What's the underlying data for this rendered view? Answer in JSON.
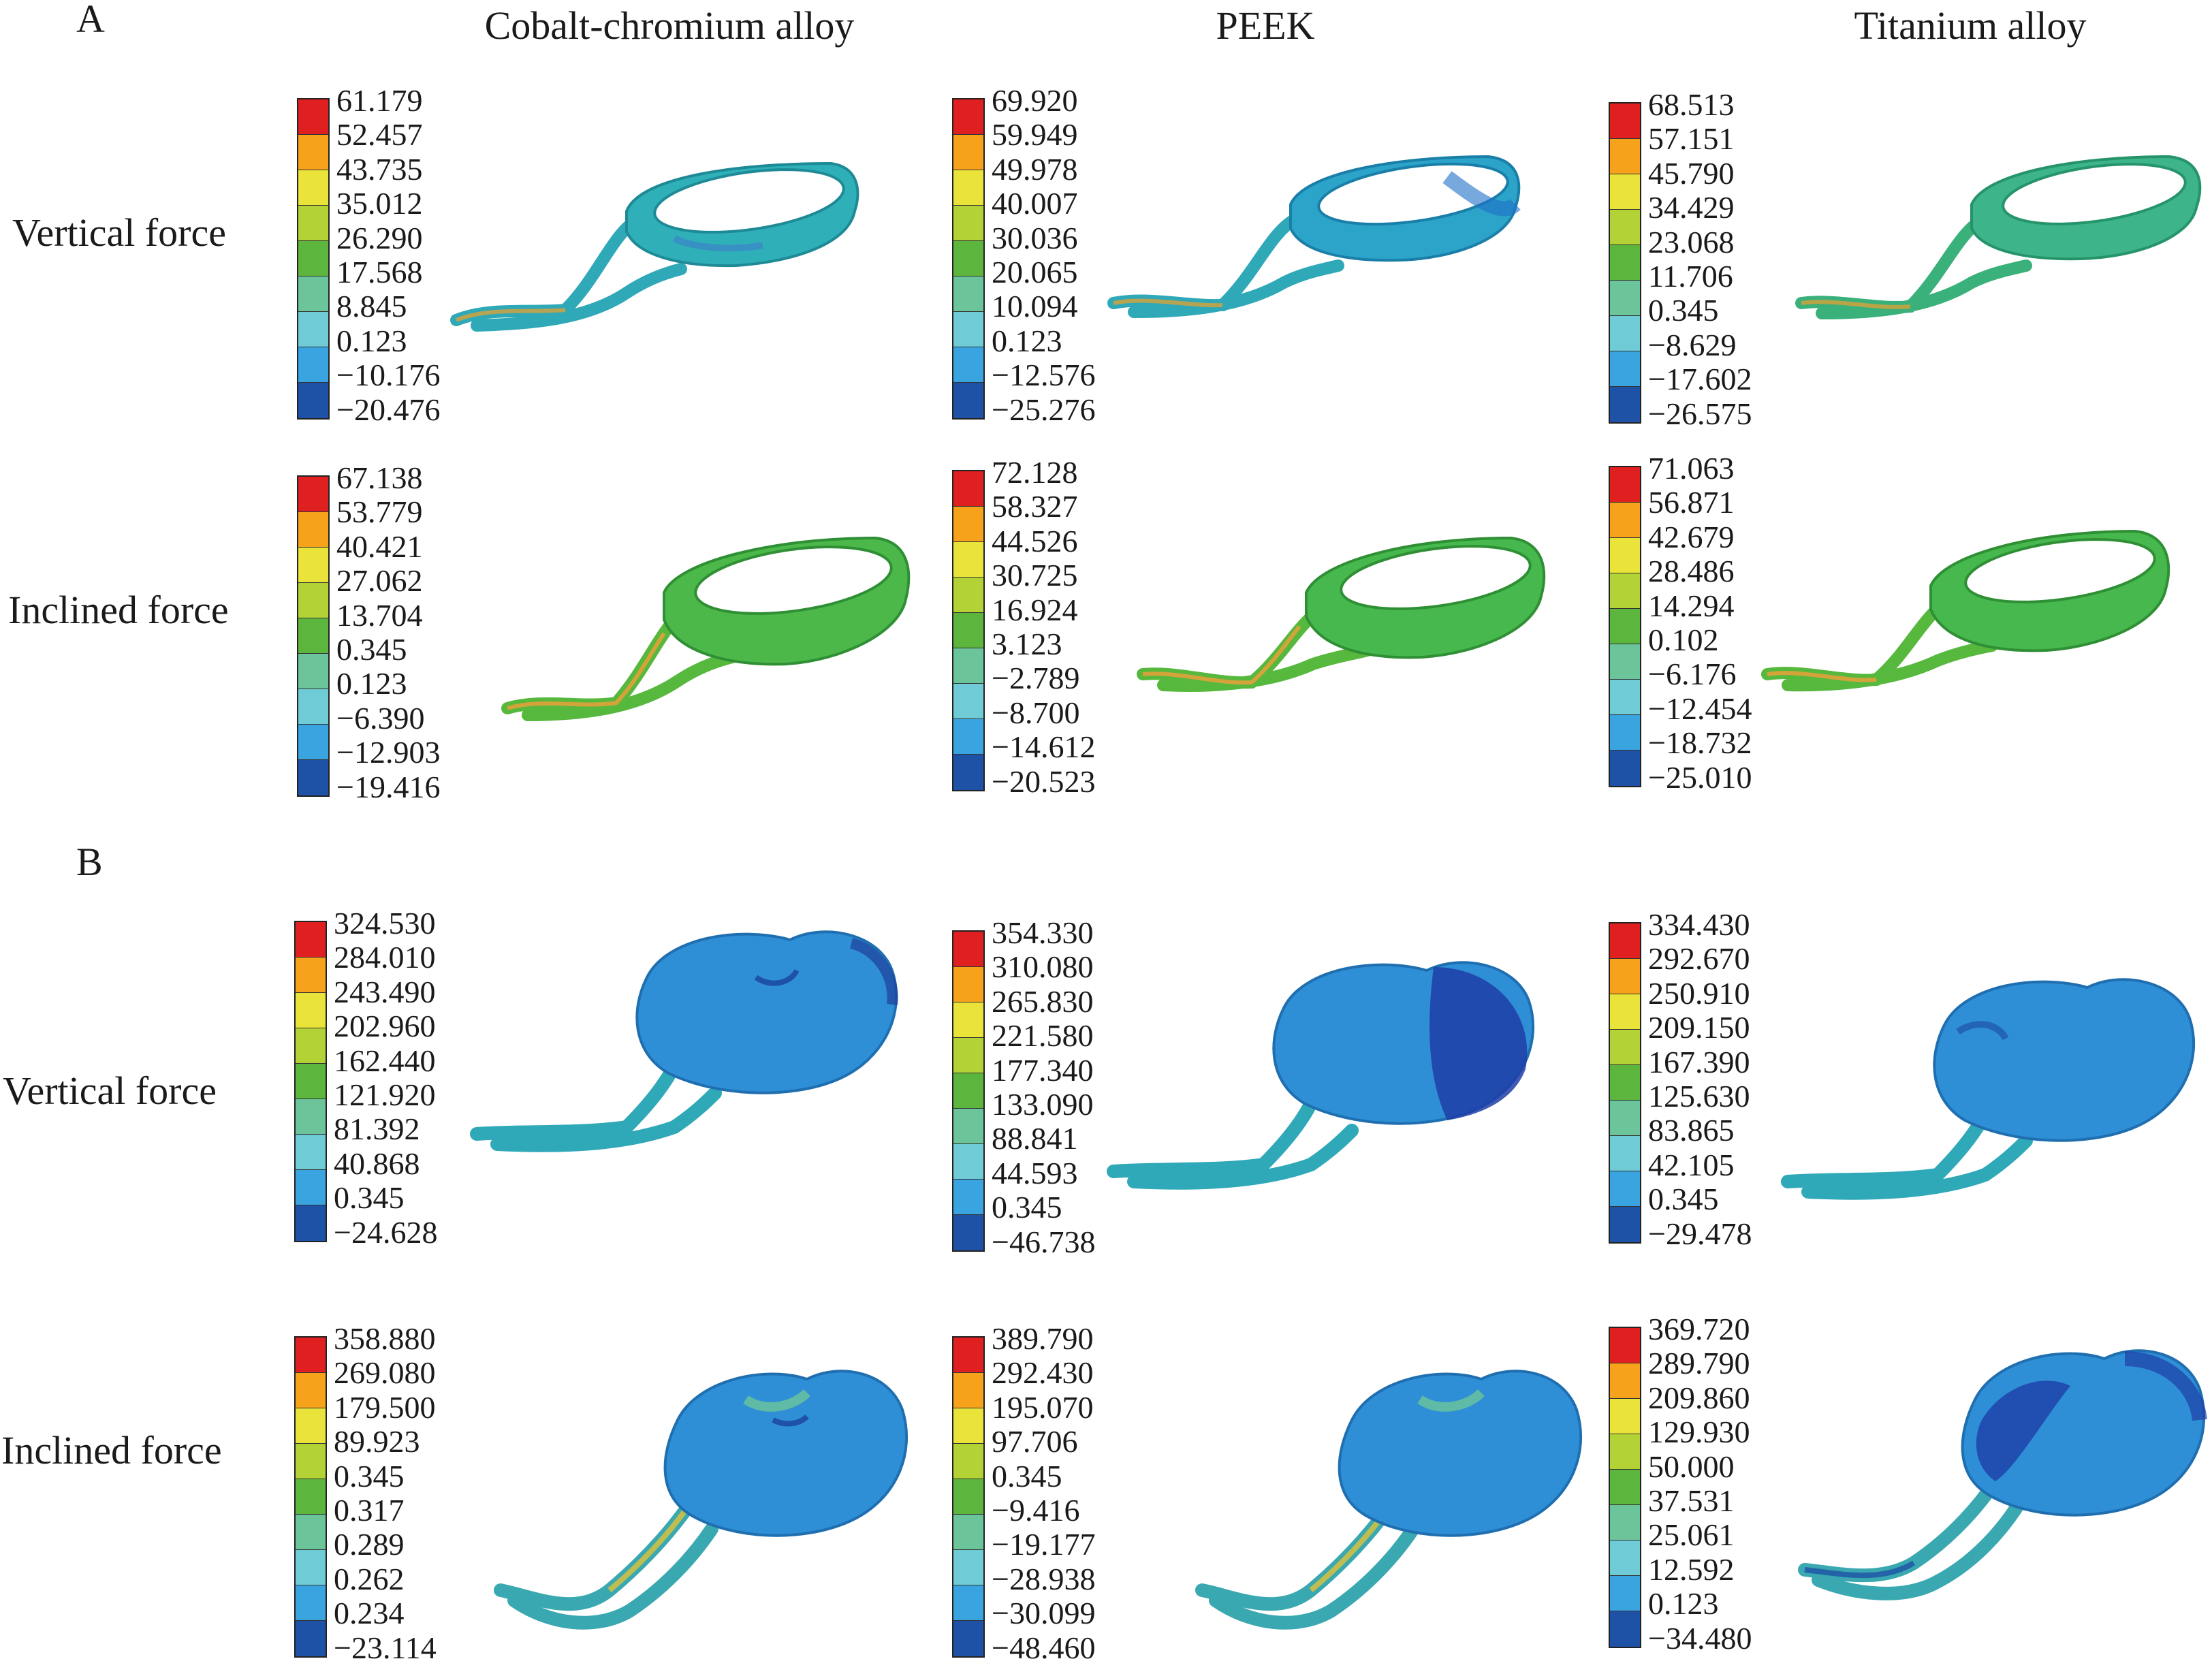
{
  "sections": {
    "a": "A",
    "b": "B"
  },
  "columns": [
    "Cobalt-chromium alloy",
    "PEEK",
    "Titanium alloy"
  ],
  "rows": [
    "Vertical force",
    "Inclined force",
    "Vertical force",
    "Inclined force"
  ],
  "scale_colors": [
    "#e02020",
    "#f6a21b",
    "#eae43a",
    "#b3d236",
    "#5cb53c",
    "#6cc49a",
    "#6fcbd6",
    "#3aa4e0",
    "#1e52a6"
  ],
  "legends": {
    "A_vertical_cocr": [
      "61.179",
      "52.457",
      "43.735",
      "35.012",
      "26.290",
      "17.568",
      "8.845",
      "0.123",
      "−10.176",
      "−20.476"
    ],
    "A_vertical_peek": [
      "69.920",
      "59.949",
      "49.978",
      "40.007",
      "30.036",
      "20.065",
      "10.094",
      "0.123",
      "−12.576",
      "−25.276"
    ],
    "A_vertical_ti": [
      "68.513",
      "57.151",
      "45.790",
      "34.429",
      "23.068",
      "11.706",
      "0.345",
      "−8.629",
      "−17.602",
      "−26.575"
    ],
    "A_inclined_cocr": [
      "67.138",
      "53.779",
      "40.421",
      "27.062",
      "13.704",
      "0.345",
      "0.123",
      "−6.390",
      "−12.903",
      "−19.416"
    ],
    "A_inclined_peek": [
      "72.128",
      "58.327",
      "44.526",
      "30.725",
      "16.924",
      "3.123",
      "−2.789",
      "−8.700",
      "−14.612",
      "−20.523"
    ],
    "A_inclined_ti": [
      "71.063",
      "56.871",
      "42.679",
      "28.486",
      "14.294",
      "0.102",
      "−6.176",
      "−12.454",
      "−18.732",
      "−25.010"
    ],
    "B_vertical_cocr": [
      "324.530",
      "284.010",
      "243.490",
      "202.960",
      "162.440",
      "121.920",
      "81.392",
      "40.868",
      "0.345",
      "−24.628"
    ],
    "B_vertical_peek": [
      "354.330",
      "310.080",
      "265.830",
      "221.580",
      "177.340",
      "133.090",
      "88.841",
      "44.593",
      "0.345",
      "−46.738"
    ],
    "B_vertical_ti": [
      "334.430",
      "292.670",
      "250.910",
      "209.150",
      "167.390",
      "125.630",
      "83.865",
      "42.105",
      "0.345",
      "−29.478"
    ],
    "B_inclined_cocr": [
      "358.880",
      "269.080",
      "179.500",
      "89.923",
      "0.345",
      "0.317",
      "0.289",
      "0.262",
      "0.234",
      "−23.114"
    ],
    "B_inclined_peek": [
      "389.790",
      "292.430",
      "195.070",
      "97.706",
      "0.345",
      "−9.416",
      "−19.177",
      "−28.938",
      "−30.099",
      "−48.460"
    ],
    "B_inclined_ti": [
      "369.720",
      "289.790",
      "209.860",
      "129.930",
      "50.000",
      "37.531",
      "25.061",
      "12.592",
      "0.123",
      "−34.480"
    ]
  }
}
